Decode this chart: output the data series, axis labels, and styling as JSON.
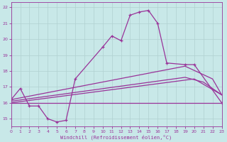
{
  "xlabel": "Windchill (Refroidissement éolien,°C)",
  "background_color": "#c8e8e8",
  "grid_color": "#b0d0d0",
  "line_color": "#993399",
  "xmin": 0,
  "xmax": 23,
  "ymin": 14.5,
  "ymax": 22.3,
  "yticks": [
    15,
    16,
    17,
    18,
    19,
    20,
    21,
    22
  ],
  "xticks": [
    0,
    1,
    2,
    3,
    4,
    5,
    6,
    7,
    8,
    9,
    10,
    11,
    12,
    13,
    14,
    15,
    16,
    17,
    18,
    19,
    20,
    21,
    22,
    23
  ],
  "line_main": {
    "x": [
      0,
      1,
      2,
      3,
      4,
      5,
      6,
      7,
      10,
      11,
      12,
      13,
      14,
      15,
      16,
      17,
      19,
      20,
      23
    ],
    "y": [
      16.2,
      16.9,
      15.8,
      15.8,
      15.0,
      14.8,
      14.9,
      17.5,
      19.5,
      20.2,
      19.9,
      21.5,
      21.7,
      21.8,
      21.0,
      18.5,
      18.4,
      18.4,
      16.0
    ]
  },
  "line_flat": {
    "x": [
      0,
      23
    ],
    "y": [
      16.0,
      16.0
    ]
  },
  "line_gentle1": {
    "x": [
      0,
      20,
      23
    ],
    "y": [
      16.0,
      17.5,
      16.5
    ]
  },
  "line_gentle2": {
    "x": [
      0,
      19,
      21,
      23
    ],
    "y": [
      16.1,
      17.6,
      17.3,
      16.5
    ]
  },
  "line_steep": {
    "x": [
      0,
      19,
      22,
      23
    ],
    "y": [
      16.2,
      18.3,
      17.5,
      16.5
    ]
  }
}
